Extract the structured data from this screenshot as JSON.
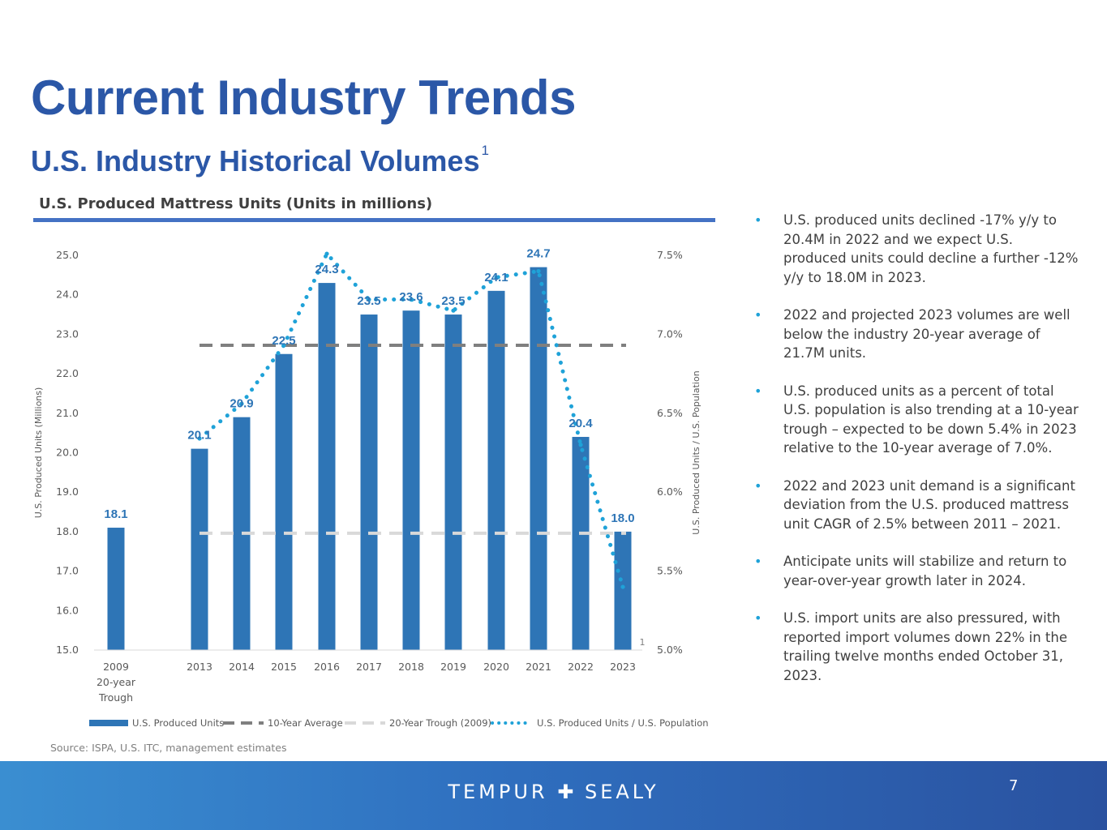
{
  "slide": {
    "title": "Current Industry Trends",
    "subtitle": "U.S. Industry Historical Volumes",
    "subtitle_sup": "1",
    "chart_heading": "U.S. Produced Mattress Units (Units in millions)",
    "source": "Source: ISPA, U.S. ITC, management estimates",
    "page_number": "7",
    "logo_left": "TEMPUR",
    "logo_plus": "✚",
    "logo_right": "SEALY"
  },
  "bullets": [
    "U.S. produced units declined -17% y/y to 20.4M in 2022 and we expect U.S. produced units could decline a further -12% y/y to 18.0M in 2023.",
    "2022 and projected 2023 volumes are well below the industry 20-year average of 21.7M units.",
    "U.S. produced units as a percent of total U.S. population is also trending at a 10-year trough – expected to be down 5.4% in 2023 relative to the 10-year average of 7.0%.",
    "2022 and 2023 unit demand is a significant deviation from the U.S. produced mattress unit CAGR of 2.5% between 2011 – 2021.",
    "Anticipate units will stabilize and return to year-over-year growth later in 2024.",
    "U.S. import units are also pressured, with reported import volumes down 22% in the trailing twelve months ended October 31, 2023."
  ],
  "colors": {
    "bar": "#2e75b6",
    "title": "#2b57a7",
    "avg_line": "#7f7f7f",
    "trough_line": "#d9d9d9",
    "ratio_line": "#1fa2d8"
  },
  "chart_data": {
    "type": "bar",
    "title": "U.S. Produced Mattress Units (Units in millions)",
    "categories": [
      "2009",
      "2013",
      "2014",
      "2015",
      "2016",
      "2017",
      "2018",
      "2019",
      "2020",
      "2021",
      "2022",
      "2023"
    ],
    "category_sublabels": [
      "20-year",
      "Trough"
    ],
    "ylabel": "U.S. Produced Units (Millions)",
    "y2label": "U.S. Produced Units / U.S. Population",
    "ylim": [
      15.0,
      25.0
    ],
    "y_ticks": [
      "15.0",
      "16.0",
      "17.0",
      "18.0",
      "19.0",
      "20.0",
      "21.0",
      "22.0",
      "23.0",
      "24.0",
      "25.0"
    ],
    "y2lim": [
      0.05,
      0.075
    ],
    "y2_ticks": [
      "5.0%",
      "5.5%",
      "6.0%",
      "6.5%",
      "7.0%",
      "7.5%"
    ],
    "series": [
      {
        "name": "U.S. Produced Units",
        "type": "bar",
        "values": [
          18.1,
          20.1,
          20.9,
          22.5,
          24.3,
          23.5,
          23.6,
          23.5,
          24.1,
          24.7,
          20.4,
          18.0
        ],
        "labels": [
          "18.1",
          "20.1",
          "20.9",
          "22.5",
          "24.3",
          "23.5",
          "23.6",
          "23.5",
          "24.1",
          "24.7",
          "20.4",
          "18.0"
        ]
      },
      {
        "name": "10-Year Average",
        "type": "line",
        "axis": "y2",
        "style": "dashed",
        "value": 0.0693
      },
      {
        "name": "20-Year Trough (2009)",
        "type": "line",
        "axis": "y2",
        "style": "dashed",
        "value": 0.0574
      },
      {
        "name": "U.S. Produced Units / U.S. Population",
        "type": "line",
        "axis": "y2",
        "style": "dotted",
        "x": [
          "2013",
          "2014",
          "2015",
          "2016",
          "2017",
          "2018",
          "2019",
          "2020",
          "2021",
          "2022",
          "2023"
        ],
        "values": [
          0.0634,
          0.0656,
          0.0693,
          0.0751,
          0.0722,
          0.0722,
          0.0715,
          0.0736,
          0.074,
          0.063,
          0.054
        ]
      }
    ],
    "annotation": "1",
    "legend": "bottom"
  }
}
